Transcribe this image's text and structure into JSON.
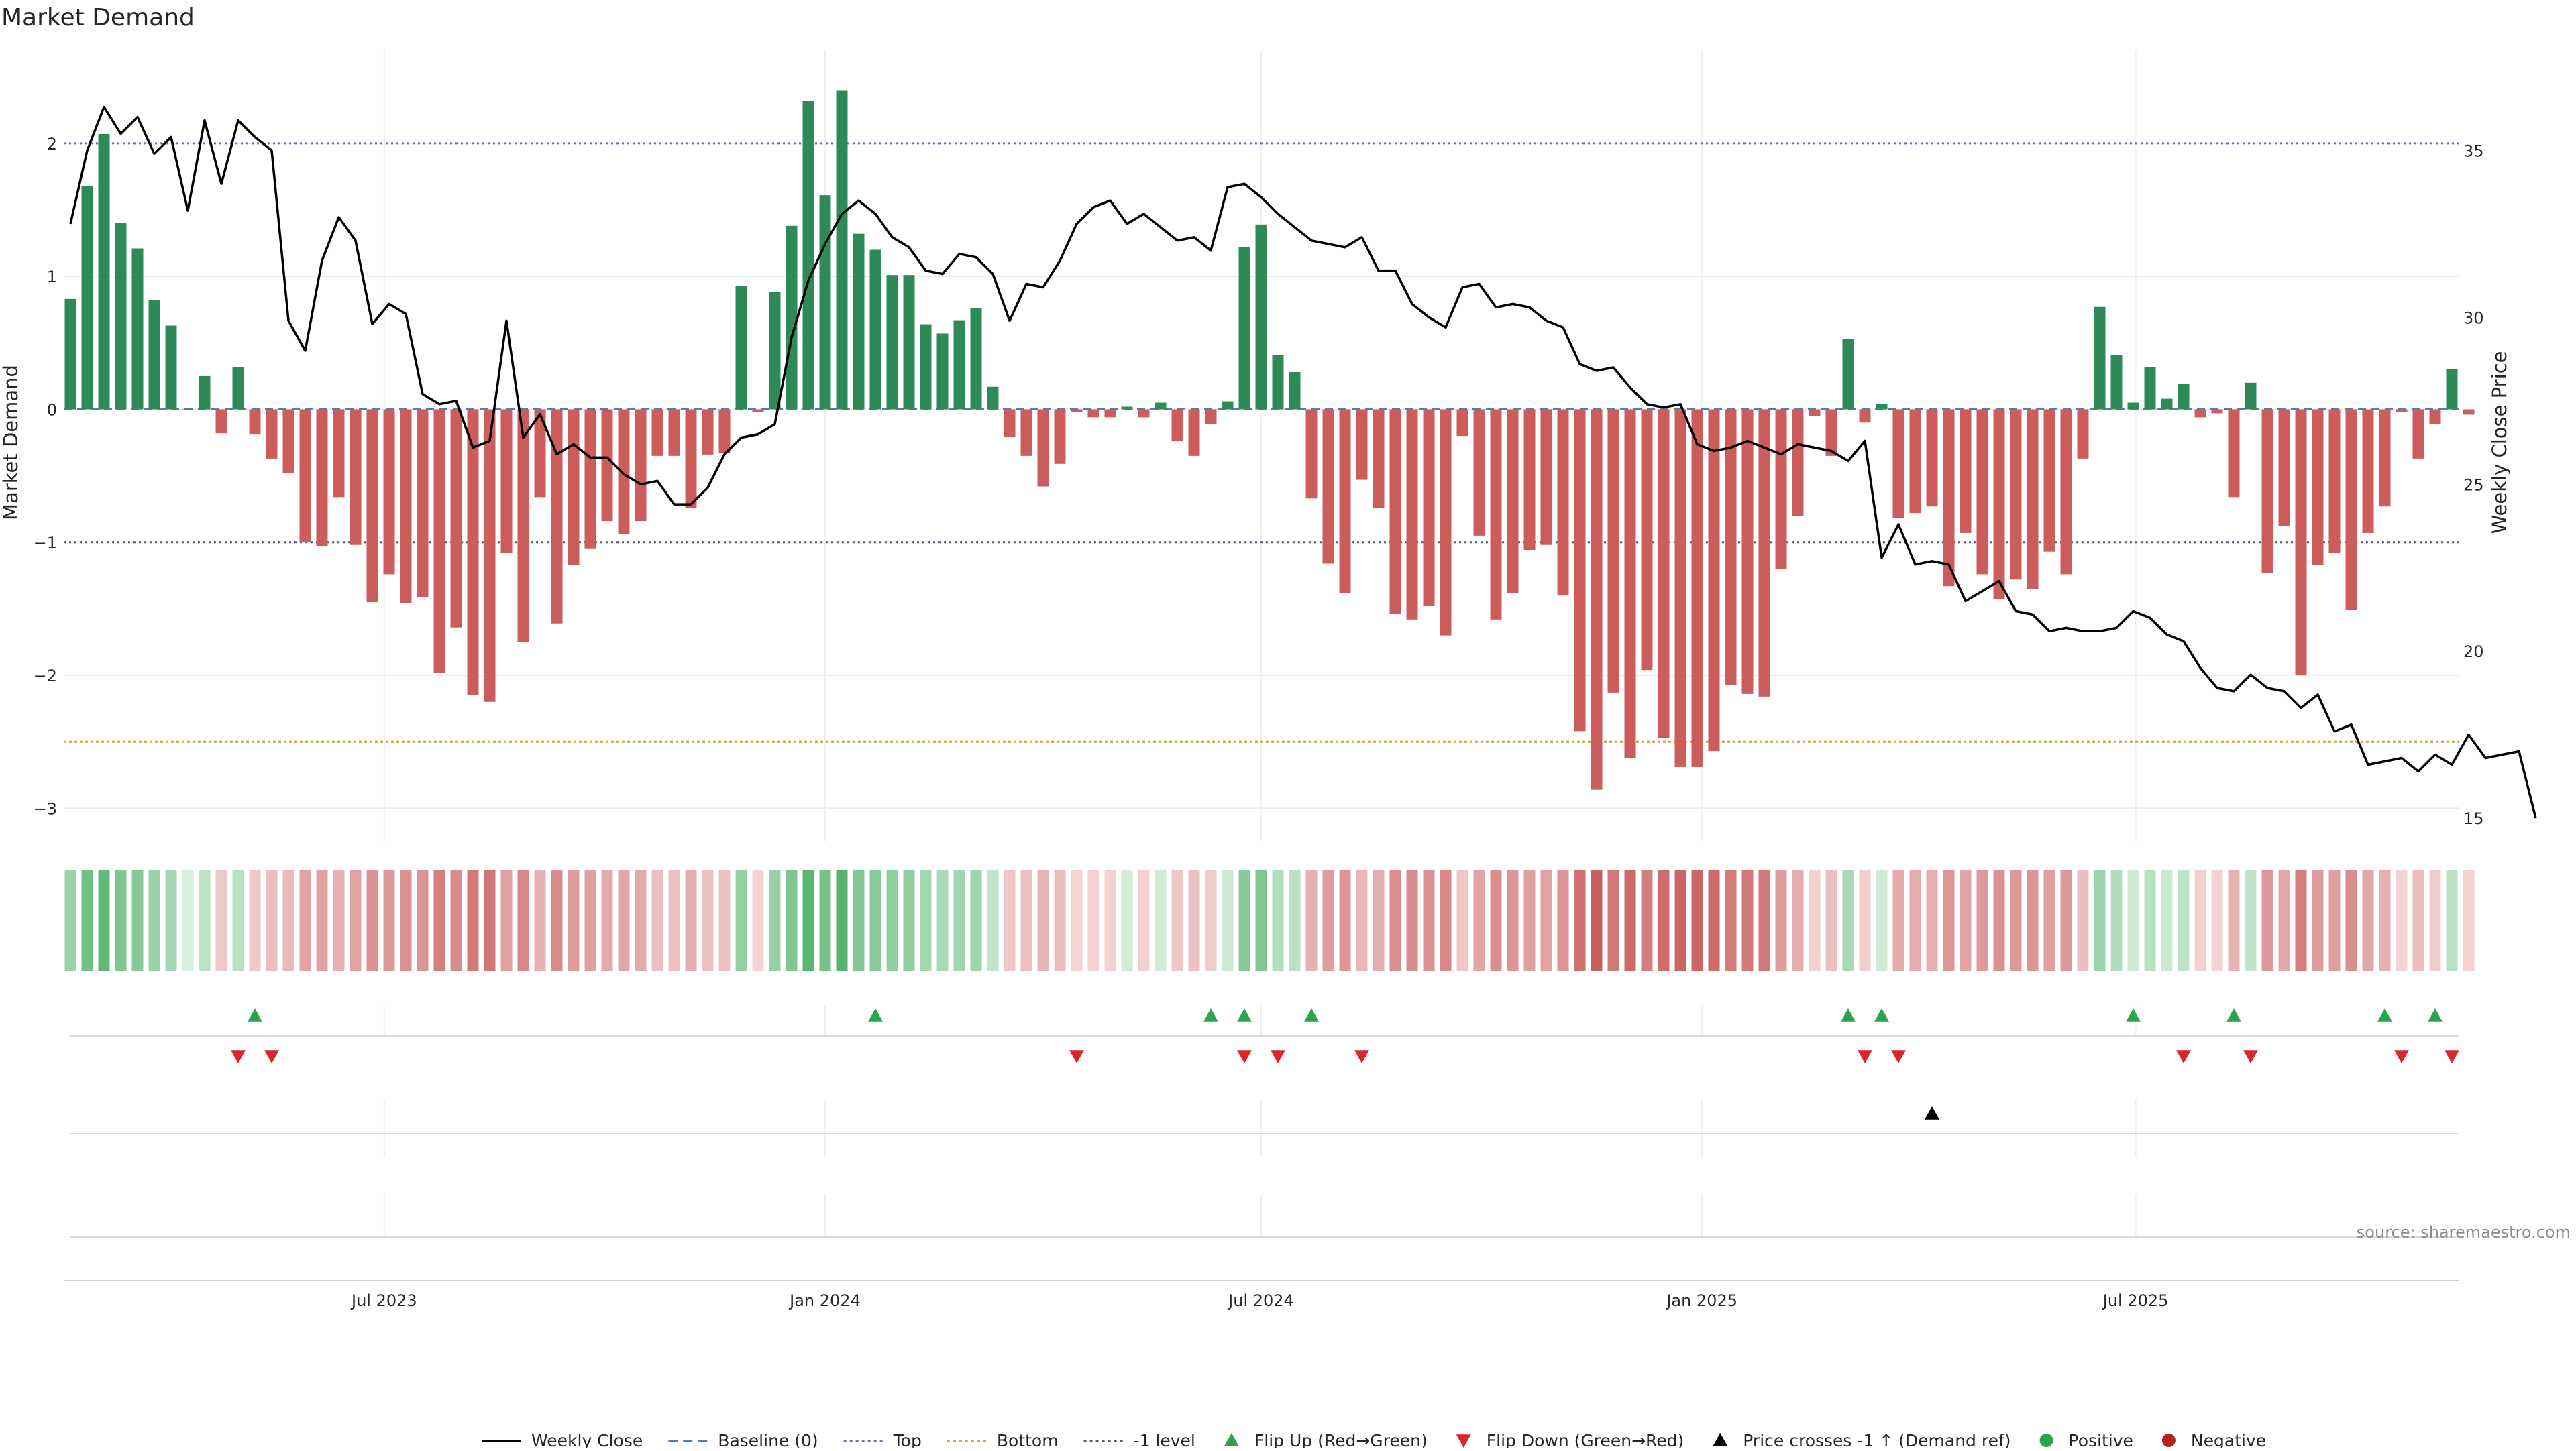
{
  "chart_data": {
    "type": "bar",
    "title": "Market Demand",
    "ylabel": "Market Demand",
    "y2label": "Weekly Close Price",
    "ylim": [
      -3.25,
      2.7
    ],
    "y2lim": [
      14.3,
      38.0
    ],
    "yticks": [
      2,
      1,
      0,
      -1,
      -2,
      -3
    ],
    "ytick_labels": [
      "2",
      "1",
      "0",
      "−1",
      "−2",
      "−3"
    ],
    "y2ticks": [
      35,
      30,
      25,
      20,
      15
    ],
    "y2tick_labels": [
      "35",
      "30",
      "25",
      "20",
      "15"
    ],
    "x_start": "2023-02-20",
    "x_end": "2025-10-20",
    "x_interval_days": 7,
    "xticks": [
      {
        "label": "Jul 2023",
        "date": "2023-07-01"
      },
      {
        "label": "Jan 2024",
        "date": "2024-01-01"
      },
      {
        "label": "Jul 2024",
        "date": "2024-07-01"
      },
      {
        "label": "Jan 2025",
        "date": "2025-01-01"
      },
      {
        "label": "Jul 2025",
        "date": "2025-07-01"
      }
    ],
    "reference_lines": [
      {
        "name": "Top",
        "value": 2.0,
        "color": "#6f6fb8",
        "dash": "3,5"
      },
      {
        "name": "-1 level",
        "value": -1.0,
        "color": "#555577",
        "dash": "3,5"
      },
      {
        "name": "Bottom",
        "value": -2.5,
        "color": "#e8953a",
        "dash": "4,4"
      },
      {
        "name": "Baseline (0)",
        "value": 0,
        "color": "#4a7fbf",
        "dash": "12,8"
      }
    ],
    "series": [
      {
        "name": "Market Demand",
        "kind": "bar",
        "positive_color": "#2e8b57",
        "negative_color": "#cd5c5c",
        "values": [
          0.83,
          1.68,
          2.07,
          1.4,
          1.21,
          0.82,
          0.63,
          0.0,
          0.25,
          -0.18,
          0.32,
          -0.19,
          -0.37,
          -0.48,
          -1.0,
          -1.03,
          -0.66,
          -1.02,
          -1.45,
          -1.24,
          -1.46,
          -1.41,
          -1.98,
          -1.64,
          -2.15,
          -2.2,
          -1.08,
          -1.75,
          -0.66,
          -1.61,
          -1.17,
          -1.05,
          -0.84,
          -0.94,
          -0.84,
          -0.35,
          -0.35,
          -0.74,
          -0.34,
          -0.33,
          0.93,
          -0.02,
          0.88,
          1.38,
          2.32,
          1.61,
          2.4,
          1.32,
          1.2,
          1.01,
          1.01,
          0.64,
          0.57,
          0.67,
          0.76,
          0.17,
          -0.21,
          -0.35,
          -0.58,
          -0.41,
          -0.02,
          -0.06,
          -0.06,
          0.02,
          -0.06,
          0.05,
          -0.24,
          -0.35,
          -0.11,
          0.06,
          1.22,
          1.39,
          0.41,
          0.28,
          -0.67,
          -1.16,
          -1.38,
          -0.53,
          -0.74,
          -1.54,
          -1.58,
          -1.48,
          -1.7,
          -0.2,
          -0.95,
          -1.58,
          -1.38,
          -1.06,
          -1.02,
          -1.4,
          -2.42,
          -2.86,
          -2.13,
          -2.62,
          -1.96,
          -2.47,
          -2.69,
          -2.69,
          -2.57,
          -2.07,
          -2.14,
          -2.16,
          -1.2,
          -0.8,
          -0.05,
          -0.35,
          0.53,
          -0.1,
          0.04,
          -0.82,
          -0.78,
          -0.73,
          -1.33,
          -0.93,
          -1.24,
          -1.43,
          -1.28,
          -1.35,
          -1.07,
          -1.24,
          -0.37,
          0.77,
          0.41,
          0.05,
          0.32,
          0.08,
          0.19,
          -0.06,
          -0.03,
          -0.66,
          0.2,
          -1.23,
          -0.88,
          -2.0,
          -1.17,
          -1.08,
          -1.51,
          -0.93,
          -0.73,
          -0.02,
          -0.37,
          -0.11,
          0.3,
          -0.04
        ]
      },
      {
        "name": "Weekly Close",
        "kind": "line",
        "axis": "right",
        "color": "#000000",
        "values": [
          32.8,
          35.0,
          36.3,
          35.5,
          36.0,
          34.9,
          35.4,
          33.2,
          35.9,
          34.0,
          35.9,
          35.4,
          35.0,
          29.9,
          29.0,
          31.7,
          33.0,
          32.3,
          29.8,
          30.4,
          30.1,
          27.7,
          27.4,
          27.5,
          26.1,
          26.3,
          29.9,
          26.4,
          27.1,
          25.9,
          26.2,
          25.8,
          25.8,
          25.3,
          25.0,
          25.1,
          24.4,
          24.4,
          24.9,
          25.9,
          26.4,
          26.5,
          26.8,
          29.4,
          31.1,
          32.2,
          33.1,
          33.5,
          33.1,
          32.4,
          32.1,
          31.4,
          31.3,
          31.9,
          31.8,
          31.3,
          29.9,
          31.0,
          30.9,
          31.7,
          32.8,
          33.3,
          33.5,
          32.8,
          33.1,
          32.7,
          32.3,
          32.4,
          32.0,
          33.9,
          34.0,
          33.6,
          33.1,
          32.7,
          32.3,
          32.2,
          32.1,
          32.4,
          31.4,
          31.4,
          30.4,
          30.0,
          29.7,
          30.9,
          31.0,
          30.3,
          30.4,
          30.3,
          29.9,
          29.7,
          28.6,
          28.4,
          28.5,
          27.9,
          27.4,
          27.3,
          27.4,
          26.2,
          26.0,
          26.1,
          26.3,
          26.1,
          25.9,
          26.2,
          26.1,
          26.0,
          25.7,
          26.3,
          22.8,
          23.8,
          22.6,
          22.7,
          22.6,
          21.5,
          21.8,
          22.1,
          21.2,
          21.1,
          20.6,
          20.7,
          20.6,
          20.6,
          20.7,
          21.2,
          21.0,
          20.5,
          20.3,
          19.5,
          18.9,
          18.8,
          19.3,
          18.9,
          18.8,
          18.3,
          18.7,
          17.6,
          17.8,
          16.6,
          16.7,
          16.8,
          16.4,
          16.9,
          16.6,
          17.5,
          16.8,
          16.9,
          17.0,
          15.0
        ]
      }
    ],
    "heat_strip": {
      "description_only": false
    },
    "signal_rows": [
      {
        "name": "Flip Up (Red→Green)",
        "marker": "triangle-up",
        "color": "#2aa44f",
        "dates": [
          "2023-05-08",
          "2024-01-22",
          "2024-06-10",
          "2024-06-24",
          "2024-07-22",
          "2025-03-03",
          "2025-03-17",
          "2025-06-30",
          "2025-08-11",
          "2025-10-13",
          "2025-11-03"
        ]
      },
      {
        "name": "Flip Down (Green→Red)",
        "marker": "triangle-down",
        "color": "#d9262c",
        "dates": [
          "2023-05-01",
          "2023-05-15",
          "2024-04-15",
          "2024-06-24",
          "2024-07-08",
          "2024-08-12",
          "2025-03-10",
          "2025-03-24",
          "2025-07-21",
          "2025-08-18",
          "2025-10-20",
          "2025-11-10"
        ]
      },
      {
        "name": "Price crosses -1 ↑ (Demand ref)",
        "marker": "triangle-up",
        "color": "#000000",
        "dates": [
          "2025-04-07"
        ]
      },
      {
        "name": "Positive",
        "marker": "circle",
        "color": "#2aa44f",
        "dates": []
      },
      {
        "name": "Negative",
        "marker": "circle",
        "color": "#b22222",
        "dates": []
      }
    ],
    "legend": {
      "placement": "bottom",
      "entries": [
        {
          "label": "Weekly Close",
          "kind": "line",
          "color": "#000000"
        },
        {
          "label": "Baseline (0)",
          "kind": "dash",
          "color": "#4a7fbf"
        },
        {
          "label": "Top",
          "kind": "dot",
          "color": "#6f6fb8"
        },
        {
          "label": "Bottom",
          "kind": "dot",
          "color": "#e8953a"
        },
        {
          "label": "-1 level",
          "kind": "dot",
          "color": "#555577"
        },
        {
          "label": "Flip Up (Red→Green)",
          "kind": "triangle-up",
          "color": "#2aa44f"
        },
        {
          "label": "Flip Down (Green→Red)",
          "kind": "triangle-down",
          "color": "#d9262c"
        },
        {
          "label": "Price crosses -1 ↑ (Demand ref)",
          "kind": "triangle-up",
          "color": "#000000"
        },
        {
          "label": "Positive",
          "kind": "circle",
          "color": "#2aa44f"
        },
        {
          "label": "Negative",
          "kind": "circle",
          "color": "#b22222"
        }
      ]
    },
    "source": "source: sharemaestro.com"
  }
}
